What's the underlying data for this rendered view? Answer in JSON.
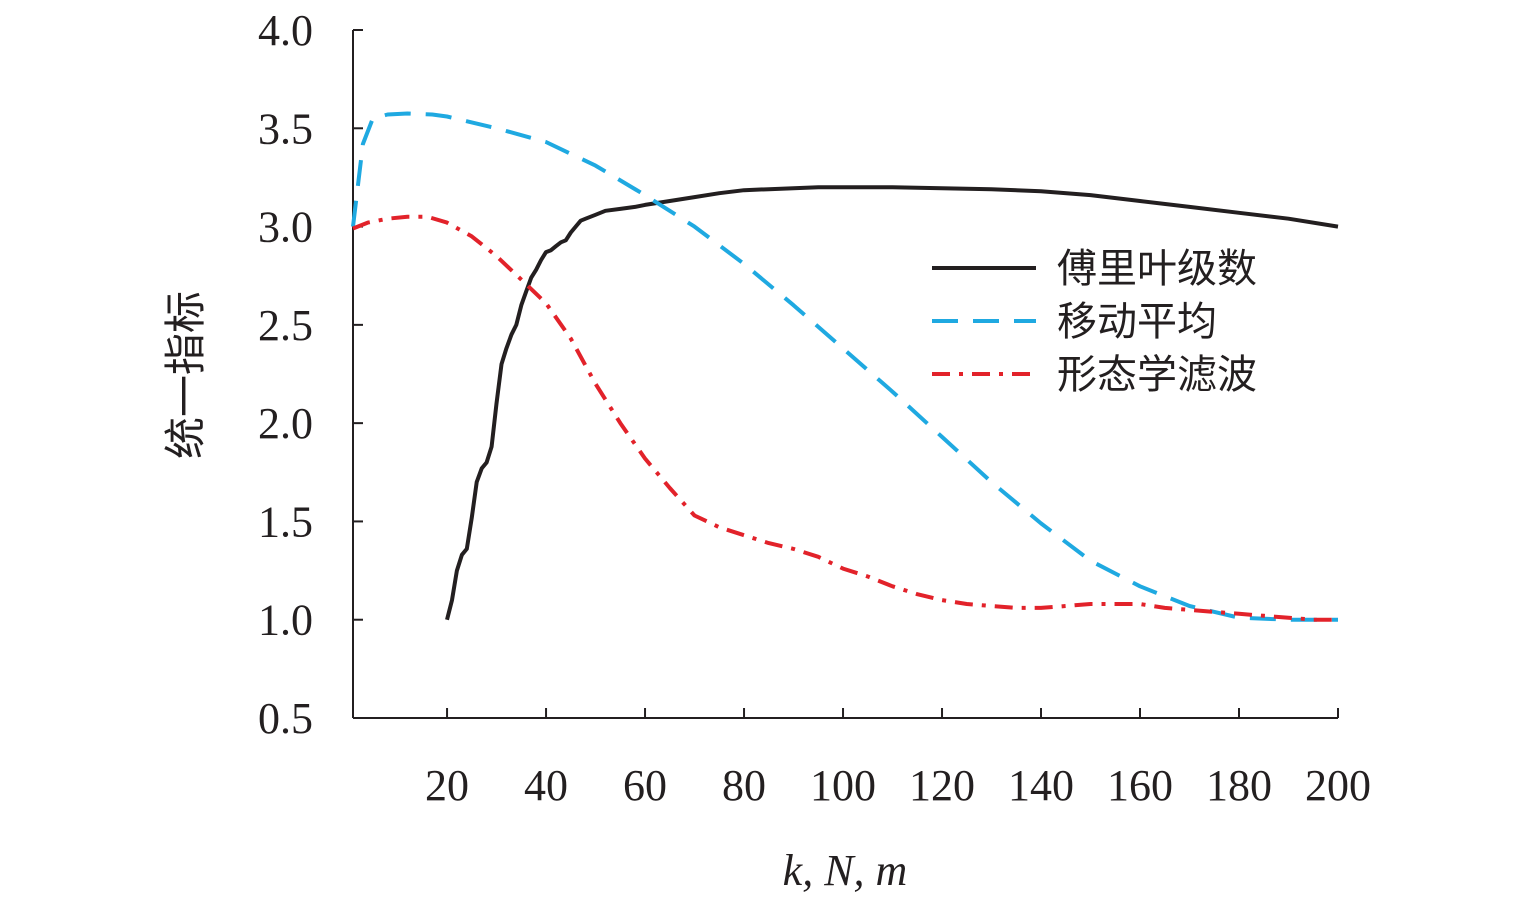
{
  "chart_data": {
    "type": "line",
    "title": "",
    "xlabel": "k, N, m",
    "ylabel": "统一指标",
    "xlim": [
      1,
      200
    ],
    "ylim": [
      0.5,
      4.0
    ],
    "x_ticks": [
      20,
      40,
      60,
      80,
      100,
      120,
      140,
      160,
      180,
      200
    ],
    "y_ticks": [
      0.5,
      1.0,
      1.5,
      2.0,
      2.5,
      3.0,
      3.5,
      4.0
    ],
    "y_tick_labels": [
      "0.5",
      "1.0",
      "1.5",
      "2.0",
      "2.5",
      "3.0",
      "3.5",
      "4.0"
    ],
    "grid": false,
    "legend_position": "right",
    "series": [
      {
        "name": "傅里叶级数",
        "color": "#231f20",
        "style": "solid",
        "x": [
          20,
          21,
          22,
          23,
          24,
          25,
          26,
          27,
          28,
          29,
          30,
          31,
          32,
          33,
          34,
          35,
          36,
          37,
          38,
          39,
          40,
          41,
          42,
          43,
          44,
          45,
          46,
          47,
          48,
          50,
          52,
          55,
          58,
          60,
          65,
          70,
          75,
          80,
          85,
          90,
          95,
          100,
          110,
          120,
          130,
          140,
          150,
          160,
          170,
          180,
          190,
          200
        ],
        "y": [
          1.0,
          1.1,
          1.25,
          1.33,
          1.36,
          1.52,
          1.7,
          1.77,
          1.8,
          1.88,
          2.1,
          2.3,
          2.38,
          2.45,
          2.5,
          2.6,
          2.67,
          2.74,
          2.78,
          2.83,
          2.87,
          2.88,
          2.9,
          2.92,
          2.93,
          2.97,
          3.0,
          3.03,
          3.04,
          3.06,
          3.08,
          3.09,
          3.1,
          3.11,
          3.13,
          3.15,
          3.17,
          3.185,
          3.19,
          3.195,
          3.2,
          3.2,
          3.2,
          3.195,
          3.19,
          3.18,
          3.16,
          3.13,
          3.1,
          3.07,
          3.04,
          3.0
        ]
      },
      {
        "name": "移动平均",
        "color": "#1fa9e1",
        "style": "dashed",
        "x": [
          1,
          3,
          5,
          8,
          12,
          17,
          20,
          30,
          40,
          50,
          60,
          70,
          80,
          90,
          100,
          110,
          120,
          130,
          140,
          150,
          160,
          170,
          180,
          190,
          200
        ],
        "y": [
          3.0,
          3.42,
          3.55,
          3.57,
          3.575,
          3.57,
          3.56,
          3.5,
          3.43,
          3.31,
          3.16,
          3.0,
          2.81,
          2.6,
          2.38,
          2.16,
          1.93,
          1.7,
          1.49,
          1.3,
          1.17,
          1.07,
          1.01,
          1.0,
          1.0
        ]
      },
      {
        "name": "形态学滤波",
        "color": "#e2222a",
        "style": "dashdot",
        "x": [
          1,
          4,
          8,
          12,
          16,
          20,
          25,
          30,
          35,
          40,
          45,
          50,
          55,
          60,
          65,
          70,
          75,
          80,
          85,
          90,
          95,
          100,
          105,
          110,
          115,
          120,
          125,
          130,
          135,
          140,
          145,
          150,
          155,
          160,
          165,
          170,
          175,
          180,
          185,
          190,
          195,
          200
        ],
        "y": [
          2.99,
          3.02,
          3.04,
          3.05,
          3.05,
          3.02,
          2.95,
          2.85,
          2.73,
          2.61,
          2.43,
          2.2,
          2.0,
          1.82,
          1.67,
          1.53,
          1.47,
          1.43,
          1.39,
          1.36,
          1.32,
          1.26,
          1.22,
          1.17,
          1.13,
          1.1,
          1.08,
          1.07,
          1.06,
          1.06,
          1.07,
          1.08,
          1.08,
          1.08,
          1.06,
          1.05,
          1.04,
          1.03,
          1.02,
          1.01,
          1.0,
          1.0
        ]
      }
    ]
  }
}
